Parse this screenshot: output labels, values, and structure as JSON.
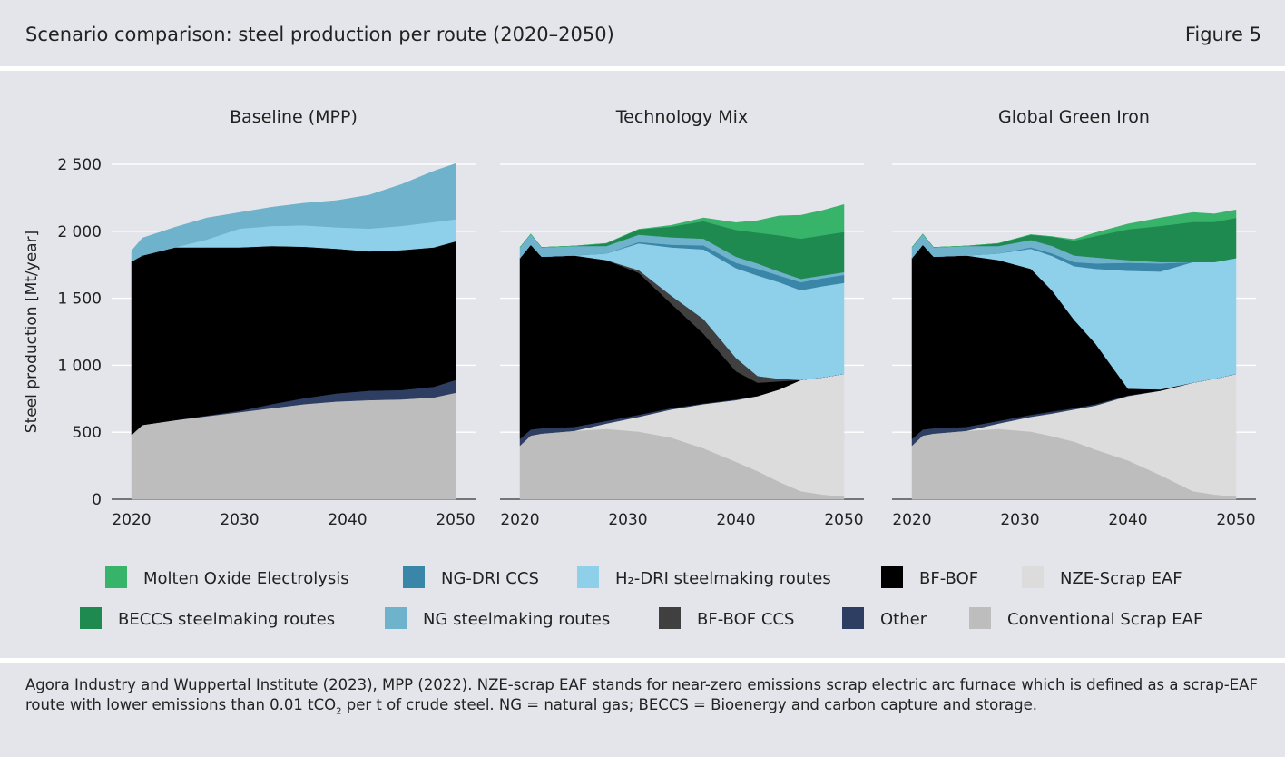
{
  "header": {
    "title": "Scenario comparison: steel production per route (2020–2050)",
    "figure_label": "Figure 5"
  },
  "note": {
    "part1": "Agora Industry and Wuppertal Institute (2023), MPP (2022). NZE-scrap EAF stands for near-zero emissions scrap electric arc furnace which is defined as a scrap-EAF route with lower emissions than 0.01 tCO",
    "sub": "2",
    "part2": " per t of crude steel. NG = natural gas; BECCS = Bioenergy and carbon capture and storage."
  },
  "colors": {
    "conv_scrap": "#bdbdbd",
    "nze_scrap": "#dcdcdc",
    "other": "#2e3e62",
    "bfbof": "#000000",
    "bfbof_ccs": "#404040",
    "h2dri": "#8ecfe9",
    "ngdri_ccs": "#3a86a8",
    "ng": "#6eb2cb",
    "beccs": "#1f8a4f",
    "moe": "#37b36a"
  },
  "chart_data": {
    "type": "area",
    "stacked": true,
    "ylabel": "Steel production [Mt/year]",
    "ylim": [
      0,
      2500
    ],
    "yticks": [
      0,
      500,
      1000,
      1500,
      2000,
      2500
    ],
    "ytick_labels": [
      "0",
      "500",
      "1 000",
      "1 500",
      "2 000",
      "2 500"
    ],
    "xlim": [
      2020,
      2050
    ],
    "xticks": [
      2020,
      2030,
      2040,
      2050
    ],
    "stack_order": [
      "conv_scrap",
      "nze_scrap",
      "other",
      "bfbof",
      "bfbof_ccs",
      "h2dri",
      "ngdri_ccs",
      "ng",
      "beccs",
      "moe"
    ],
    "legend": {
      "placement": "bottom",
      "rows": [
        [
          {
            "key": "moe",
            "label": "Molten Oxide Electrolysis"
          },
          {
            "key": "ngdri_ccs",
            "label": "NG-DRI CCS"
          },
          {
            "key": "h2dri",
            "label": "H₂-DRI steelmaking routes"
          },
          {
            "key": "bfbof",
            "label": "BF-BOF"
          },
          {
            "key": "nze_scrap",
            "label": "NZE-Scrap EAF"
          }
        ],
        [
          {
            "key": "beccs",
            "label": "BECCS steelmaking routes"
          },
          {
            "key": "ng",
            "label": "NG steelmaking routes"
          },
          {
            "key": "bfbof_ccs",
            "label": "BF-BOF CCS"
          },
          {
            "key": "other",
            "label": "Other"
          },
          {
            "key": "conv_scrap",
            "label": "Conventional Scrap EAF"
          }
        ]
      ]
    },
    "panels": [
      {
        "title": "Baseline (MPP)",
        "x": [
          2020,
          2021,
          2024,
          2027,
          2030,
          2033,
          2036,
          2039,
          2042,
          2045,
          2048,
          2050
        ],
        "series": {
          "conv_scrap": [
            480,
            555,
            590,
            620,
            650,
            680,
            710,
            730,
            740,
            745,
            760,
            795
          ],
          "nze_scrap": [
            0,
            0,
            0,
            0,
            0,
            0,
            0,
            0,
            0,
            0,
            0,
            0
          ],
          "other": [
            0,
            0,
            0,
            5,
            10,
            30,
            45,
            60,
            70,
            70,
            80,
            95
          ],
          "bfbof": [
            1295,
            1265,
            1290,
            1255,
            1220,
            1180,
            1130,
            1080,
            1040,
            1045,
            1040,
            1035
          ],
          "bfbof_ccs": [
            0,
            0,
            0,
            0,
            0,
            0,
            0,
            0,
            0,
            0,
            0,
            0
          ],
          "h2dri": [
            0,
            0,
            0,
            60,
            140,
            150,
            160,
            160,
            170,
            180,
            190,
            165
          ],
          "ngdri_ccs": [
            0,
            0,
            0,
            0,
            0,
            0,
            0,
            0,
            0,
            0,
            0,
            0
          ],
          "ng": [
            80,
            130,
            150,
            160,
            120,
            140,
            165,
            200,
            250,
            310,
            380,
            415
          ],
          "beccs": [
            0,
            0,
            0,
            0,
            0,
            0,
            0,
            0,
            0,
            0,
            0,
            0
          ],
          "moe": [
            0,
            0,
            0,
            0,
            0,
            0,
            0,
            0,
            0,
            0,
            0,
            0
          ]
        }
      },
      {
        "title": "Technology Mix",
        "x": [
          2020,
          2021,
          2022,
          2025,
          2028,
          2031,
          2034,
          2037,
          2040,
          2042,
          2044,
          2046,
          2048,
          2050
        ],
        "series": {
          "conv_scrap": [
            400,
            475,
            490,
            510,
            525,
            505,
            460,
            380,
            280,
            210,
            130,
            60,
            35,
            20
          ],
          "nze_scrap": [
            0,
            0,
            0,
            0,
            40,
            110,
            210,
            330,
            460,
            560,
            690,
            830,
            875,
            915
          ],
          "other": [
            50,
            45,
            40,
            30,
            20,
            15,
            10,
            5,
            5,
            0,
            0,
            0,
            0,
            0
          ],
          "bfbof": [
            1350,
            1380,
            1280,
            1280,
            1200,
            1060,
            780,
            520,
            210,
            100,
            60,
            0,
            0,
            0
          ],
          "bfbof_ccs": [
            0,
            0,
            0,
            0,
            0,
            20,
            60,
            110,
            100,
            50,
            20,
            0,
            0,
            0
          ],
          "h2dri": [
            0,
            0,
            0,
            0,
            50,
            200,
            360,
            520,
            670,
            750,
            720,
            670,
            680,
            680
          ],
          "ngdri_ccs": [
            0,
            0,
            0,
            0,
            0,
            10,
            20,
            30,
            40,
            50,
            50,
            60,
            60,
            60
          ],
          "ng": [
            80,
            80,
            70,
            70,
            55,
            55,
            55,
            50,
            45,
            40,
            30,
            25,
            20,
            20
          ],
          "beccs": [
            0,
            0,
            0,
            0,
            20,
            40,
            80,
            130,
            200,
            230,
            270,
            300,
            300,
            300
          ],
          "moe": [
            0,
            0,
            0,
            0,
            0,
            0,
            10,
            25,
            55,
            90,
            145,
            175,
            185,
            205
          ]
        }
      },
      {
        "title": "Global Green Iron",
        "x": [
          2020,
          2021,
          2022,
          2025,
          2028,
          2031,
          2033,
          2035,
          2037,
          2040,
          2043,
          2046,
          2048,
          2050
        ],
        "series": {
          "conv_scrap": [
            400,
            475,
            490,
            510,
            525,
            505,
            470,
            430,
            370,
            290,
            180,
            60,
            35,
            20
          ],
          "nze_scrap": [
            0,
            0,
            0,
            0,
            40,
            110,
            170,
            240,
            330,
            480,
            630,
            810,
            865,
            915
          ],
          "other": [
            50,
            45,
            40,
            30,
            20,
            15,
            15,
            10,
            10,
            5,
            0,
            0,
            0,
            0
          ],
          "bfbof": [
            1350,
            1380,
            1280,
            1280,
            1200,
            1090,
            900,
            660,
            450,
            50,
            10,
            0,
            0,
            0
          ],
          "bfbof_ccs": [
            0,
            0,
            0,
            0,
            0,
            0,
            0,
            0,
            0,
            0,
            0,
            0,
            0,
            0
          ],
          "h2dri": [
            0,
            0,
            0,
            0,
            50,
            150,
            260,
            400,
            560,
            880,
            880,
            900,
            870,
            865
          ],
          "ngdri_ccs": [
            0,
            0,
            0,
            0,
            0,
            10,
            20,
            30,
            40,
            60,
            60,
            0,
            0,
            0
          ],
          "ng": [
            80,
            80,
            70,
            70,
            55,
            55,
            55,
            50,
            45,
            20,
            10,
            0,
            0,
            0
          ],
          "beccs": [
            0,
            0,
            0,
            0,
            20,
            40,
            70,
            110,
            160,
            230,
            270,
            300,
            300,
            300
          ],
          "moe": [
            0,
            0,
            0,
            0,
            0,
            0,
            0,
            10,
            25,
            40,
            60,
            70,
            60,
            60
          ]
        }
      }
    ]
  }
}
